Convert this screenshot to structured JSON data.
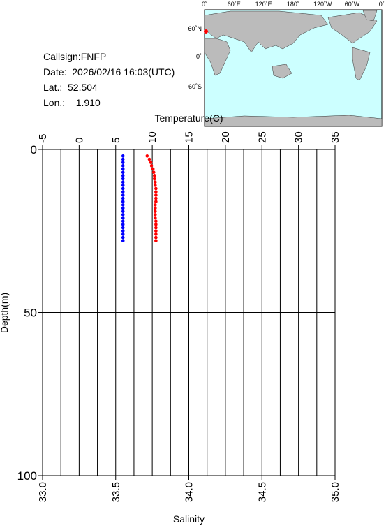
{
  "info": [
    "Callsign:FNFP",
    "Date:  2026/02/16 16:03(UTC)",
    "Lat.:  52.504",
    "Lon.:    1.910"
  ],
  "map": {
    "lon_labels": [
      "0˚",
      "60˚E",
      "120˚E",
      "180˚",
      "120˚W",
      "60˚W",
      "0˚"
    ],
    "lat_labels": [
      "60˚N",
      "0˚",
      "60˚S"
    ]
  },
  "chart_data": {
    "type": "scatter",
    "xlabel": "Salinity",
    "x2label": "Temperature(C)",
    "ylabel": "Depth(m)",
    "xlim": [
      33.0,
      35.0
    ],
    "xticks": [
      {
        "value": 33.0,
        "label": "33.0"
      },
      {
        "value": 33.5,
        "label": "33.5"
      },
      {
        "value": 34.0,
        "label": "34.0"
      },
      {
        "value": 34.5,
        "label": "34.5"
      },
      {
        "value": 35.0,
        "label": "35.0"
      }
    ],
    "x2lim": [
      -5,
      35
    ],
    "x2ticks": [
      -5,
      0,
      5,
      10,
      15,
      20,
      25,
      30,
      35
    ],
    "x2minor": [
      -2.5,
      2.5,
      7.5,
      12.5,
      17.5,
      22.5,
      27.5,
      32.5
    ],
    "ylim": [
      0,
      100
    ],
    "yticks": [
      0,
      50,
      100
    ],
    "y_inverted": true,
    "grid": true,
    "y": [
      2,
      3,
      4,
      5,
      6,
      7,
      8,
      9,
      10,
      11,
      12,
      13,
      14,
      15,
      16,
      17,
      18,
      19,
      20,
      21,
      22,
      23,
      24,
      25,
      26,
      27,
      28
    ],
    "series": [
      {
        "axis": "x",
        "color": "#0000ff",
        "values": [
          33.55,
          33.55,
          33.55,
          33.55,
          33.55,
          33.55,
          33.55,
          33.55,
          33.55,
          33.55,
          33.55,
          33.55,
          33.55,
          33.55,
          33.55,
          33.55,
          33.55,
          33.55,
          33.55,
          33.55,
          33.55,
          33.55,
          33.55,
          33.55,
          33.55,
          33.55,
          33.55
        ]
      },
      {
        "axis": "x2",
        "color": "#ff0000",
        "values": [
          9.3,
          9.6,
          9.8,
          9.9,
          10.1,
          10.2,
          10.3,
          10.3,
          10.4,
          10.4,
          10.5,
          10.5,
          10.5,
          10.5,
          10.5,
          10.4,
          10.4,
          10.4,
          10.4,
          10.4,
          10.5,
          10.5,
          10.5,
          10.5,
          10.5,
          10.5,
          10.5
        ]
      }
    ]
  }
}
